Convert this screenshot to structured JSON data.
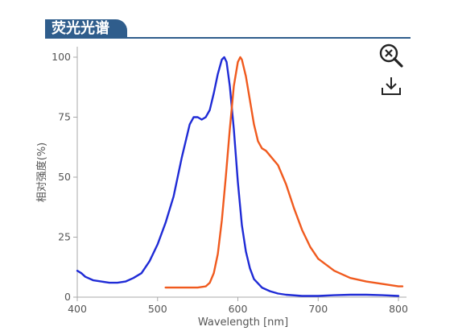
{
  "header": {
    "title": "荧光光谱"
  },
  "toolbar": {
    "zoom_icon": "zoom-reset-icon",
    "download_icon": "download-icon"
  },
  "colors": {
    "header": "#2f5d8c",
    "excitation": "#1f2bd6",
    "emission": "#f05a1e"
  },
  "chart_data": {
    "type": "line",
    "title": "",
    "xlabel": "Wavelength [nm]",
    "ylabel": "相对强度(%)",
    "xlim": [
      400,
      810
    ],
    "ylim": [
      0,
      100
    ],
    "xticks": [
      "400",
      "500",
      "600",
      "700",
      "800"
    ],
    "yticks": [
      "0",
      "25",
      "50",
      "75",
      "100"
    ],
    "series": [
      {
        "color": "#1f2bd6",
        "x": [
          400,
          405,
          410,
          420,
          430,
          440,
          450,
          460,
          470,
          480,
          490,
          500,
          510,
          520,
          530,
          540,
          545,
          550,
          555,
          560,
          565,
          570,
          575,
          580,
          583,
          586,
          590,
          595,
          600,
          605,
          610,
          615,
          620,
          630,
          640,
          650,
          660,
          680,
          700,
          720,
          740,
          760,
          780,
          800
        ],
        "y": [
          11,
          10,
          8.5,
          7,
          6.5,
          6,
          6,
          6.5,
          8,
          10,
          15,
          22,
          31,
          42,
          58,
          72,
          75,
          75,
          74,
          75,
          78,
          85,
          93,
          99,
          100,
          98,
          88,
          70,
          48,
          30,
          19,
          12,
          7.5,
          4,
          2.5,
          1.5,
          1,
          0.5,
          0.5,
          0.8,
          1,
          1,
          0.8,
          0.5
        ]
      },
      {
        "color": "#f05a1e",
        "x": [
          510,
          520,
          530,
          540,
          550,
          560,
          565,
          570,
          575,
          580,
          585,
          590,
          595,
          600,
          603,
          605,
          610,
          615,
          620,
          625,
          630,
          635,
          640,
          650,
          660,
          670,
          680,
          690,
          700,
          720,
          740,
          760,
          780,
          800,
          805
        ],
        "y": [
          4,
          4,
          4,
          4,
          4,
          4.5,
          6,
          10,
          18,
          32,
          50,
          70,
          88,
          98,
          100,
          99,
          92,
          82,
          72,
          65,
          62,
          61,
          59,
          55,
          47,
          37,
          28,
          21,
          16,
          11,
          8,
          6.5,
          5.5,
          4.5,
          4.5
        ]
      }
    ]
  }
}
